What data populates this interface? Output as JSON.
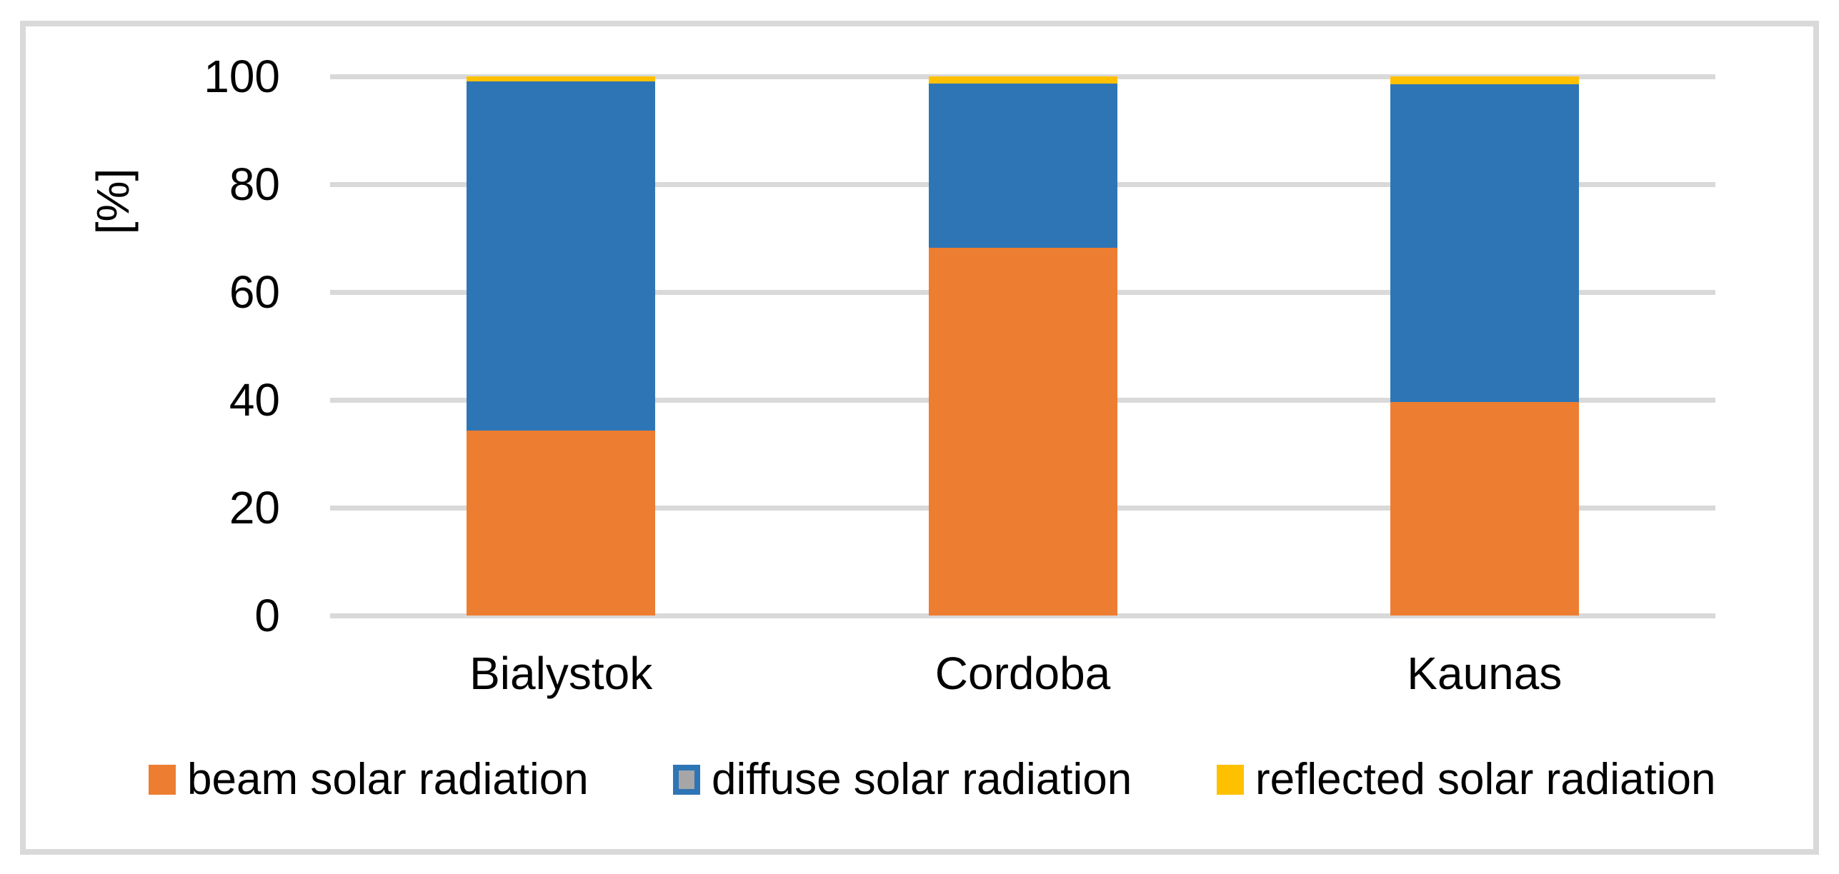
{
  "figure": {
    "background": "#FFFFFF",
    "frame_color": "#D9D9D9"
  },
  "chart_data": {
    "type": "bar",
    "stacked": true,
    "ylabel": "[%]",
    "categories": [
      "Bialystok",
      "Cordoba",
      "Kaunas"
    ],
    "series": [
      {
        "name": "beam solar radiation",
        "color": "#ED7D31",
        "values": [
          34.3,
          68.2,
          39.6
        ]
      },
      {
        "name": "diffuse solar radiation",
        "color": "#2E75B6",
        "values": [
          64.8,
          30.5,
          59.0
        ]
      },
      {
        "name": "reflected solar radiation",
        "color": "#FFC000",
        "values": [
          0.9,
          1.3,
          1.4
        ]
      }
    ],
    "ylim": [
      0,
      100
    ],
    "yticks": [
      0,
      20,
      40,
      60,
      80,
      100
    ],
    "grid": true,
    "gridline_color": "#D9D9D9",
    "legend_position": "bottom",
    "legend": [
      {
        "label": "beam solar radiation",
        "fill": "#ED7D31",
        "border": null
      },
      {
        "label": "diffuse solar radiation",
        "fill": "#A6A6A6",
        "border": "#2E75B6"
      },
      {
        "label": "reflected solar radiation",
        "fill": "#FFC000",
        "border": null
      }
    ]
  }
}
